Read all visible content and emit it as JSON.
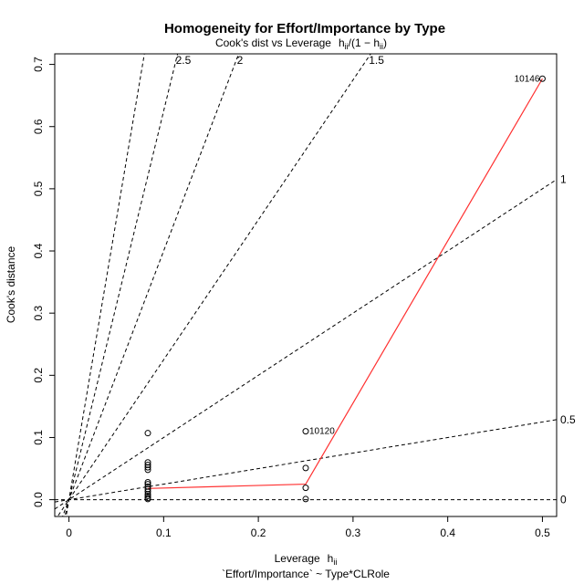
{
  "chart_data": {
    "type": "scatter",
    "title": "Homogeneity for Effort/Importance by Type",
    "subtitle": {
      "main": "Cook's dist vs Leverage",
      "h": "h",
      "sub": "ii",
      "formula_open": "/(1 − ",
      "formula_close": ")"
    },
    "xlabel": {
      "main": "Leverage",
      "h": "h",
      "sub": "ii"
    },
    "ylabel": "Cook's distance",
    "caption": "`Effort/Importance` ~ Type*CLRole",
    "xlim": [
      -0.015,
      0.515
    ],
    "ylim": [
      -0.027,
      0.717
    ],
    "x_ticks": [
      0,
      0.1,
      0.2,
      0.3,
      0.4,
      0.5
    ],
    "x_tick_labels": [
      "0",
      "0.1",
      "0.2",
      "0.3",
      "0.4",
      "0.5"
    ],
    "y_ticks": [
      0,
      0.1,
      0.2,
      0.3,
      0.4,
      0.5,
      0.6,
      0.7
    ],
    "y_tick_labels": [
      "0.0",
      "0.1",
      "0.2",
      "0.3",
      "0.4",
      "0.5",
      "0.6",
      "0.7"
    ],
    "points": [
      {
        "x": 0.0833,
        "y": 0.107
      },
      {
        "x": 0.0833,
        "y": 0.06
      },
      {
        "x": 0.0833,
        "y": 0.056
      },
      {
        "x": 0.0833,
        "y": 0.052
      },
      {
        "x": 0.0833,
        "y": 0.048
      },
      {
        "x": 0.0833,
        "y": 0.028
      },
      {
        "x": 0.0833,
        "y": 0.025
      },
      {
        "x": 0.0833,
        "y": 0.021
      },
      {
        "x": 0.0833,
        "y": 0.017
      },
      {
        "x": 0.0833,
        "y": 0.013
      },
      {
        "x": 0.0833,
        "y": 0.009
      },
      {
        "x": 0.0833,
        "y": 0.006
      },
      {
        "x": 0.0833,
        "y": 0.003
      },
      {
        "x": 0.0833,
        "y": 0.001
      },
      {
        "x": 0.25,
        "y": 0.11,
        "label": "10120"
      },
      {
        "x": 0.25,
        "y": 0.051
      },
      {
        "x": 0.25,
        "y": 0.019
      },
      {
        "x": 0.25,
        "y": 0.001
      },
      {
        "x": 0.5,
        "y": 0.677,
        "label": "10146"
      }
    ],
    "smooth": {
      "color": "#ff3030",
      "x": [
        0.0833,
        0.25,
        0.5
      ],
      "y": [
        0.018,
        0.025,
        0.677
      ]
    },
    "contours": [
      {
        "label": "0",
        "slope": 0
      },
      {
        "label": "0.5",
        "slope": 0.25
      },
      {
        "label": "1",
        "slope": 1.0
      },
      {
        "label": "1.5",
        "slope": 2.25
      },
      {
        "label": "2",
        "slope": 4.0
      },
      {
        "label": "2.5",
        "slope": 6.25
      },
      {
        "label": "",
        "slope": 9.0
      }
    ]
  }
}
